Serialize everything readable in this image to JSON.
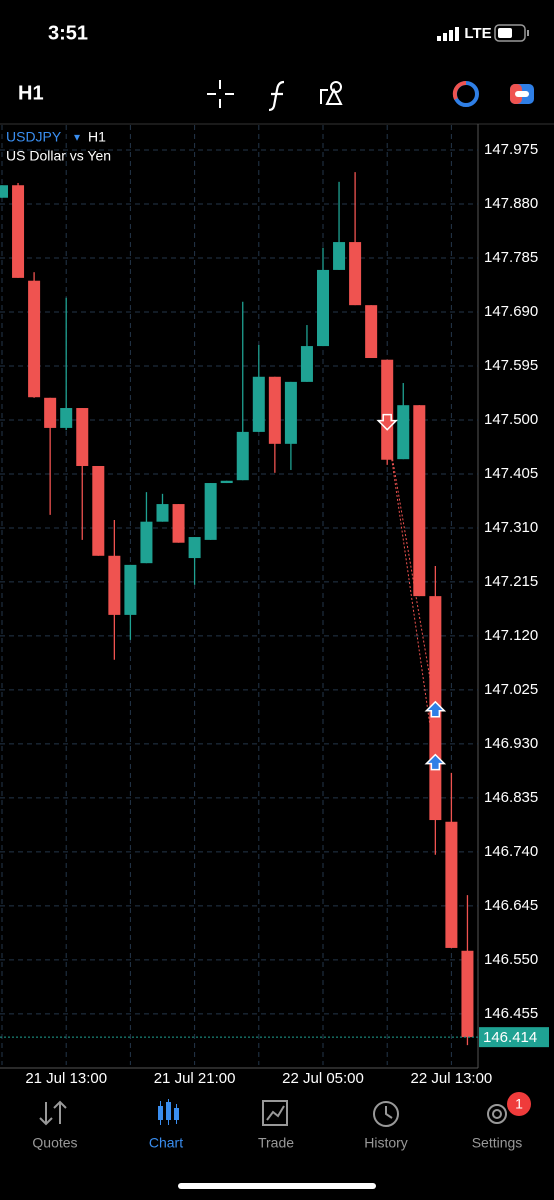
{
  "status_bar": {
    "time": "3:51",
    "network": "LTE"
  },
  "toolbar": {
    "timeframe": "H1"
  },
  "chart_data": {
    "type": "candlestick",
    "title": "USDJPY",
    "title_arrow": "▾",
    "timeframe": "H1",
    "subtitle": "US Dollar vs Yen",
    "categories": [
      null,
      null,
      null,
      null,
      "21 Jul 13:00",
      null,
      null,
      null,
      null,
      null,
      null,
      null,
      "21 Jul 21:00",
      null,
      null,
      null,
      null,
      null,
      null,
      null,
      "22 Jul 05:00",
      null,
      null,
      null,
      null,
      null,
      null,
      null,
      "22 Jul 13:00",
      null
    ],
    "open": [
      147.891,
      147.913,
      147.745,
      147.539,
      147.486,
      147.521,
      147.419,
      147.261,
      147.157,
      147.248,
      147.321,
      147.352,
      147.257,
      147.289,
      147.389,
      147.394,
      147.479,
      147.576,
      147.458,
      147.567,
      147.63,
      147.764,
      147.813,
      147.702,
      147.606,
      147.431,
      147.526,
      147.19,
      146.793,
      146.566
    ],
    "high": [
      147.913,
      147.917,
      147.76,
      147.539,
      147.715,
      147.521,
      147.419,
      147.324,
      147.245,
      147.373,
      147.37,
      147.352,
      147.294,
      147.389,
      147.393,
      147.708,
      147.632,
      147.576,
      147.567,
      147.667,
      147.803,
      147.919,
      147.936,
      147.702,
      147.606,
      147.565,
      147.526,
      147.243,
      146.879,
      146.664
    ],
    "low": [
      147.891,
      147.75,
      147.539,
      147.333,
      147.482,
      147.289,
      147.261,
      147.078,
      147.113,
      147.248,
      147.321,
      147.284,
      147.21,
      147.289,
      147.389,
      147.394,
      147.479,
      147.407,
      147.412,
      147.567,
      147.63,
      147.764,
      147.702,
      147.609,
      147.421,
      147.431,
      147.19,
      146.735,
      146.571,
      146.4
    ],
    "close": [
      147.913,
      147.75,
      147.54,
      147.486,
      147.521,
      147.419,
      147.261,
      147.157,
      147.245,
      147.321,
      147.352,
      147.284,
      147.294,
      147.389,
      147.393,
      147.479,
      147.576,
      147.458,
      147.567,
      147.63,
      147.764,
      147.813,
      147.702,
      147.609,
      147.43,
      147.526,
      147.19,
      146.796,
      146.571,
      146.414
    ],
    "up_color": "#1fa293",
    "down_color": "#ef5350",
    "markers": {
      "sell": [
        null,
        null,
        null,
        null,
        null,
        null,
        null,
        null,
        null,
        null,
        null,
        null,
        null,
        null,
        null,
        null,
        null,
        null,
        null,
        null,
        null,
        null,
        null,
        null,
        147.497,
        null,
        null,
        null,
        null,
        null
      ],
      "buy": [
        null,
        null,
        null,
        null,
        null,
        null,
        null,
        null,
        null,
        null,
        null,
        null,
        null,
        null,
        null,
        null,
        null,
        null,
        null,
        null,
        null,
        null,
        null,
        null,
        null,
        null,
        null,
        146.99,
        null,
        null
      ],
      "buy2": [
        null,
        null,
        null,
        null,
        null,
        null,
        null,
        null,
        null,
        null,
        null,
        null,
        null,
        null,
        null,
        null,
        null,
        null,
        null,
        null,
        null,
        null,
        null,
        null,
        null,
        null,
        null,
        146.897,
        null,
        null
      ]
    },
    "last_price": 146.414,
    "ylim": [
      146.365,
      148.019
    ],
    "yticks": [
      147.975,
      {
        "value": 147.88,
        "label": "147.880"
      },
      147.785,
      {
        "value": 147.69,
        "label": "147.690"
      },
      147.595,
      {
        "value": 147.5,
        "label": "147.500"
      },
      147.405,
      {
        "value": 147.31,
        "label": "147.310"
      },
      147.215,
      {
        "value": 147.12,
        "label": "147.120"
      },
      147.025,
      {
        "value": 146.93,
        "label": "146.930"
      },
      146.835,
      {
        "value": 146.74,
        "label": "146.740"
      },
      146.645,
      {
        "value": 146.55,
        "label": "146.550"
      },
      146.455
    ],
    "grid": true
  },
  "nav": {
    "items": [
      "Quotes",
      "Chart",
      "Trade",
      "History",
      "Settings"
    ],
    "badge": "1"
  }
}
